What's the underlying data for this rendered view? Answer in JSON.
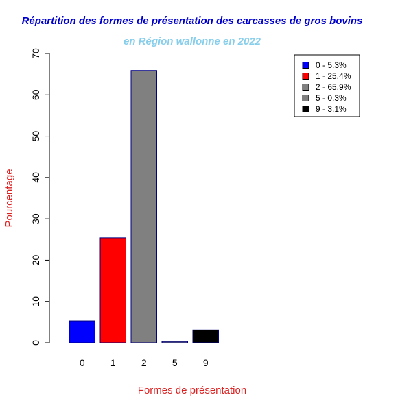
{
  "chart_data": {
    "type": "bar",
    "title": "Répartition des formes de présentation des carcasses de gros bovins",
    "subtitle": "en Région wallonne en 2022",
    "xlabel": "Formes de présentation",
    "ylabel": "Pourcentage",
    "categories": [
      "0",
      "1",
      "2",
      "5",
      "9"
    ],
    "values": [
      5.3,
      25.4,
      65.9,
      0.3,
      3.1
    ],
    "bar_colors": [
      "#0000ff",
      "#ff0000",
      "#808080",
      "#808080",
      "#000000"
    ],
    "bar_border_color": "#000080",
    "ylim": [
      0,
      70
    ],
    "yticks": [
      "0",
      "10",
      "20",
      "30",
      "40",
      "50",
      "60",
      "70"
    ],
    "legend": {
      "placement": "top-right",
      "entries": [
        "0 - 5.3%",
        "1 - 25.4%",
        "2 - 65.9%",
        "5 - 0.3%",
        "9 - 3.1%"
      ]
    },
    "grid": false,
    "colors": {
      "title": "#0000cd",
      "subtitle": "#87ceeb",
      "axis_label": "#dd2222"
    }
  }
}
